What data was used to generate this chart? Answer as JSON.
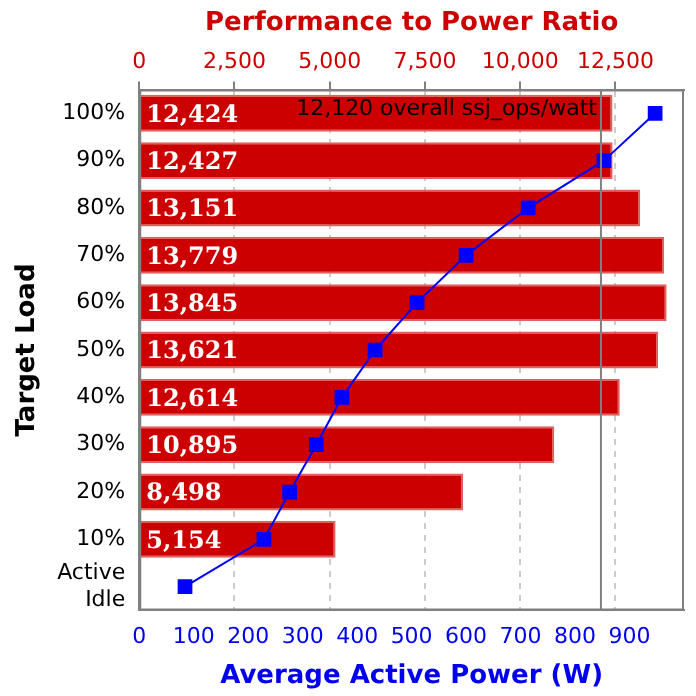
{
  "chart_data": {
    "type": "bar",
    "orientation": "horizontal",
    "x2label": "Performance to Power Ratio",
    "xlabel": "Average Active Power (W)",
    "ylabel": "Target Load",
    "categories": [
      "100%",
      "90%",
      "80%",
      "70%",
      "60%",
      "50%",
      "40%",
      "30%",
      "20%",
      "10%",
      "Active\nIdle"
    ],
    "series": [
      {
        "axis": "x2",
        "color": "#cc0000",
        "values": [
          12424,
          12427,
          13151,
          13779,
          13845,
          13621,
          12614,
          10895,
          8498,
          5154,
          null
        ],
        "value_labels": [
          "12,424",
          "12,427",
          "13,151",
          "13,779",
          "13,845",
          "13,621",
          "12,614",
          "10,895",
          "8,498",
          "5,154",
          null
        ]
      },
      {
        "type": "line",
        "color": "#0000ff",
        "marker": "square",
        "line_style": "solid",
        "values": [
          947,
          853,
          714,
          600,
          510,
          433,
          372,
          325,
          276,
          229,
          84
        ]
      }
    ],
    "ref_lines": [
      {
        "axis": "x2",
        "value": 12120,
        "label": "12,120 overall ssj_ops/watt",
        "color": "#808080"
      }
    ],
    "xlim": [
      0,
      1000
    ],
    "xticks": [
      0,
      100,
      200,
      300,
      400,
      500,
      600,
      700,
      800,
      900
    ],
    "x2lim": [
      0,
      14300
    ],
    "x2ticks": [
      0,
      {
        "value": 2500,
        "label": "2,500"
      },
      {
        "value": 5000,
        "label": "5,000"
      },
      {
        "value": 7500,
        "label": "7,500"
      },
      {
        "value": 10000,
        "label": "10,000"
      },
      {
        "value": 12500,
        "label": "12,500"
      }
    ],
    "grid": "x2",
    "legend": false
  }
}
